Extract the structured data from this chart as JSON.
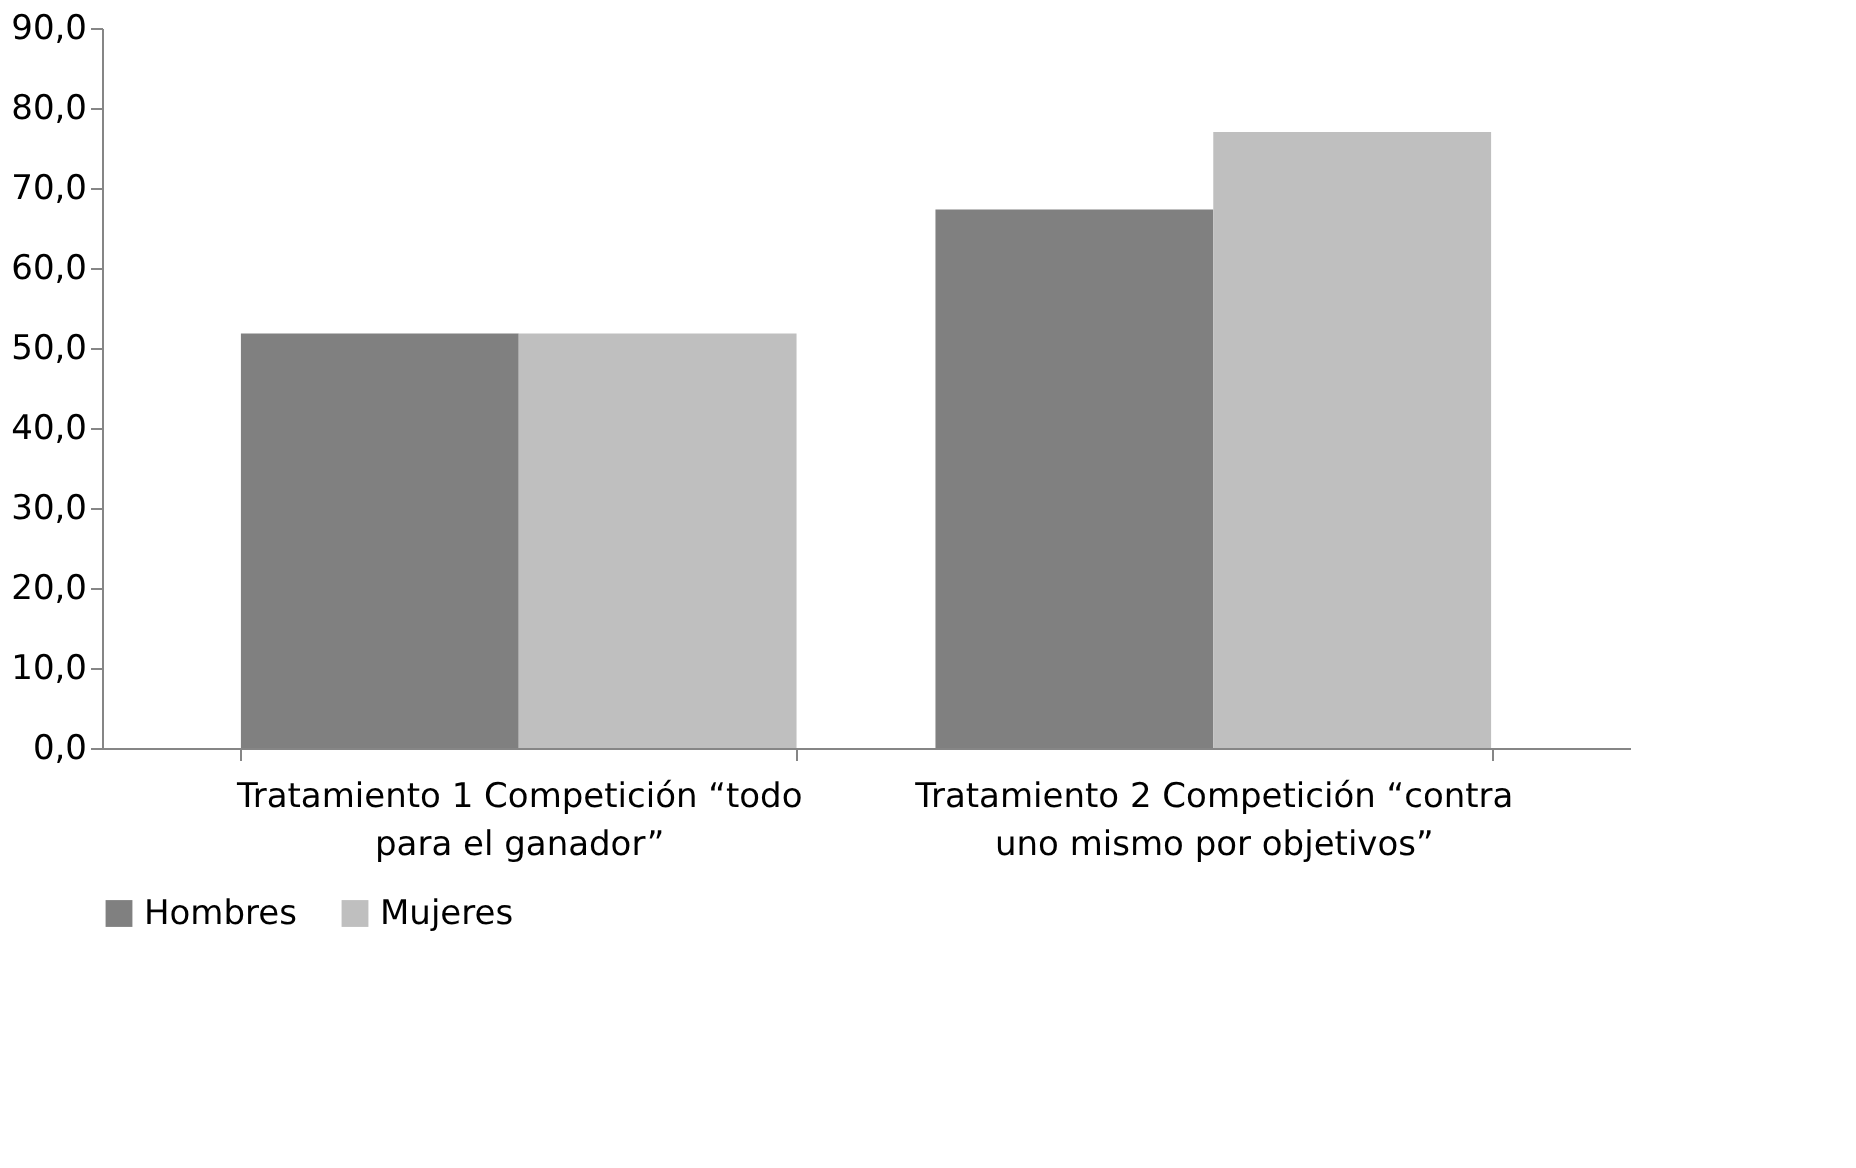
{
  "chart_data": {
    "type": "bar",
    "categories": [
      "Tratamiento 1 Competición “todo para el ganador”",
      "Tratamiento 2 Competición “contra uno mismo por objetivos”"
    ],
    "series": [
      {
        "name": "Hombres",
        "color": "#808080",
        "values": [
          51.8,
          67.3
        ]
      },
      {
        "name": "Mujeres",
        "color": "#bfbfbf",
        "values": [
          51.8,
          77.0
        ]
      }
    ],
    "ylim": [
      0,
      90
    ],
    "yticks": [
      {
        "value": 0,
        "label": "0,0"
      },
      {
        "value": 10,
        "label": "10,0"
      },
      {
        "value": 20,
        "label": "20,0"
      },
      {
        "value": 30,
        "label": "30,0"
      },
      {
        "value": 40,
        "label": "40,0"
      },
      {
        "value": 50,
        "label": "50,0"
      },
      {
        "value": 60,
        "label": "60,0"
      },
      {
        "value": 70,
        "label": "70,0"
      },
      {
        "value": 80,
        "label": "80,0"
      },
      {
        "value": 90,
        "label": "90,0"
      }
    ],
    "grid": false,
    "legend": "bottom"
  }
}
